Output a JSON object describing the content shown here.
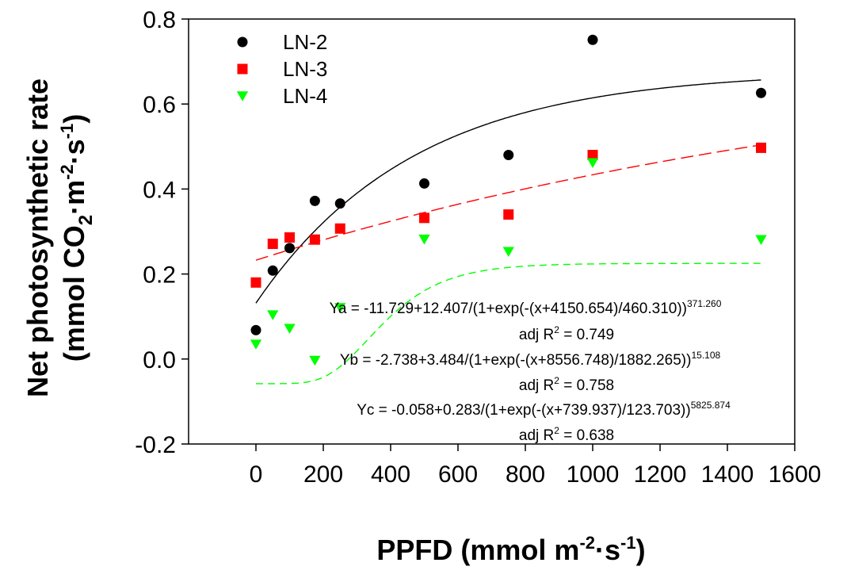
{
  "chart_data": {
    "type": "scatter",
    "xlabel": "PPFD (mmol m",
    "xlabel_unit_sup": "-2",
    "xlabel_unit_mid": "·s",
    "xlabel_unit_sup2": "-1",
    "xlabel_close": ")",
    "ylabel_line1": "Net photosynthetic rate",
    "ylabel_line2": "(mmol CO",
    "ylabel_line2_sub": "2",
    "ylabel_line2_mid": "·m",
    "ylabel_line2_sup": "-2",
    "ylabel_line2_mid2": "·s",
    "ylabel_line2_sup2": "-1",
    "ylabel_line2_close": ")",
    "xlim": [
      -200,
      1600
    ],
    "ylim": [
      -0.2,
      0.8
    ],
    "x_ticks": [
      0,
      200,
      400,
      600,
      800,
      1000,
      1200,
      1400,
      1600
    ],
    "x_tick_labels": [
      "0",
      "200",
      "400",
      "600",
      "800",
      "1000",
      "1200",
      "1400",
      "1600"
    ],
    "y_ticks": [
      -0.2,
      0.0,
      0.2,
      0.4,
      0.6,
      0.8
    ],
    "y_tick_labels": [
      "-0.2",
      "0.0",
      "0.2",
      "0.4",
      "0.6",
      "0.8"
    ],
    "legend_position": "top-left",
    "series": [
      {
        "name": "LN-2",
        "marker": "circle",
        "color": "#000000",
        "line_style": "solid",
        "points": [
          [
            0,
            0.068
          ],
          [
            50,
            0.208
          ],
          [
            100,
            0.261
          ],
          [
            175,
            0.372
          ],
          [
            250,
            0.366
          ],
          [
            500,
            0.413
          ],
          [
            750,
            0.48
          ],
          [
            1000,
            0.751
          ],
          [
            1500,
            0.626
          ]
        ],
        "fit": {
          "a": -11.729,
          "b": 12.407,
          "c": 4150.654,
          "d": 460.31,
          "e": 371.26
        }
      },
      {
        "name": "LN-3",
        "marker": "square",
        "color": "#ff0000",
        "line_style": "long-dash",
        "points": [
          [
            0,
            0.18
          ],
          [
            50,
            0.271
          ],
          [
            100,
            0.286
          ],
          [
            175,
            0.281
          ],
          [
            250,
            0.307
          ],
          [
            500,
            0.332
          ],
          [
            750,
            0.34
          ],
          [
            1000,
            0.48
          ],
          [
            1500,
            0.497
          ]
        ],
        "fit": {
          "a": -2.738,
          "b": 3.484,
          "c": 8556.748,
          "d": 1882.265,
          "e": 15.108
        }
      },
      {
        "name": "LN-4",
        "marker": "triangle-down",
        "color": "#00ff00",
        "line_style": "dash",
        "points": [
          [
            0,
            0.035
          ],
          [
            50,
            0.104
          ],
          [
            100,
            0.072
          ],
          [
            175,
            -0.003
          ],
          [
            250,
            0.121
          ],
          [
            500,
            0.282
          ],
          [
            750,
            0.253
          ],
          [
            1000,
            0.462
          ],
          [
            1500,
            0.281
          ]
        ],
        "fit": {
          "a": -0.058,
          "b": 0.283,
          "c": 739.937,
          "d": 123.703,
          "e": 5825.874
        }
      }
    ],
    "annotations": [
      {
        "main": "Ya = -11.729+12.407/(1+exp(-(x+4150.654)/460.310))",
        "sup": "371.260"
      },
      {
        "main": "adj R",
        "sup": "2",
        "tail": " = 0.749"
      },
      {
        "main": "Yb = -2.738+3.484/(1+exp(-(x+8556.748)/1882.265))",
        "sup": "15.108"
      },
      {
        "main": "adj R",
        "sup": "2",
        "tail": " = 0.758"
      },
      {
        "main": "Yc = -0.058+0.283/(1+exp(-(x+739.937)/123.703))",
        "sup": "5825.874"
      },
      {
        "main": "adj R",
        "sup": "2",
        "tail": " = 0.638"
      }
    ]
  }
}
